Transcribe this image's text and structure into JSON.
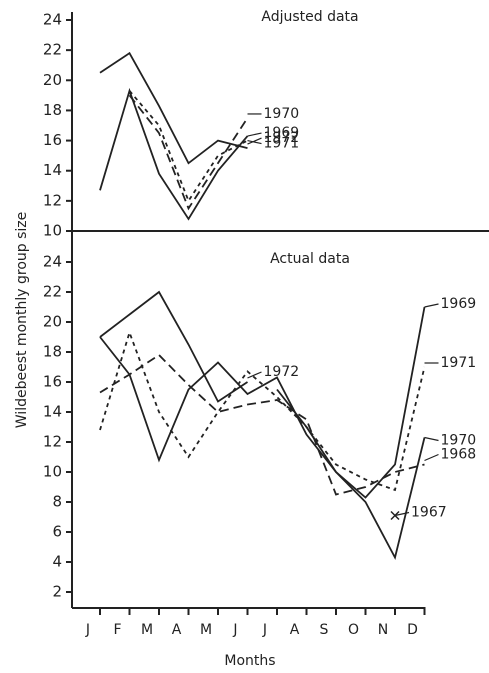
{
  "chart_data": [
    {
      "type": "line",
      "title": "Adjusted data",
      "categories": [
        "J",
        "F",
        "M",
        "A",
        "M",
        "J"
      ],
      "ylim": [
        10,
        24
      ],
      "yticks": [
        10,
        12,
        14,
        16,
        18,
        20,
        22,
        24
      ],
      "series": [
        {
          "name": "1972",
          "color": "#222222",
          "dash": "solid",
          "values": [
            20.5,
            21.8,
            18.3,
            14.5,
            16,
            15.5
          ]
        },
        {
          "name": "1969",
          "color": "#222222",
          "dash": "solid",
          "values": [
            12.7,
            19.3,
            13.8,
            10.8,
            14,
            16.3
          ]
        },
        {
          "name": "1970",
          "color": "#222222",
          "dash": "dashed",
          "values": [
            null,
            19,
            16.5,
            11.5,
            14.5,
            17.5
          ]
        },
        {
          "name": "1971",
          "color": "#222222",
          "dash": "dotted",
          "values": [
            null,
            19.3,
            17,
            12,
            15,
            16
          ]
        }
      ]
    },
    {
      "type": "line",
      "title": "Actual data",
      "xlabel": "Months",
      "ylabel": "Wildebeest monthly group size",
      "categories": [
        "J",
        "F",
        "M",
        "A",
        "M",
        "J",
        "J",
        "A",
        "S",
        "O",
        "N",
        "D"
      ],
      "ylim": [
        1,
        24
      ],
      "yticks": [
        2,
        4,
        6,
        8,
        10,
        12,
        14,
        16,
        18,
        20,
        22,
        24
      ],
      "series": [
        {
          "name": "1972",
          "color": "#222222",
          "dash": "solid",
          "values": [
            19,
            20.5,
            22,
            18.5,
            14.7,
            16,
            null,
            null,
            null,
            null,
            null,
            null
          ]
        },
        {
          "name": "1969",
          "color": "#222222",
          "dash": "solid",
          "values": [
            19,
            16.5,
            10.8,
            15.5,
            17.3,
            15.2,
            16.3,
            12.5,
            10,
            8.3,
            10.5,
            21
          ]
        },
        {
          "name": "1971",
          "color": "#222222",
          "dash": "dotted",
          "values": [
            12.8,
            19.3,
            14,
            11,
            14,
            16.7,
            15,
            13,
            10.5,
            9.5,
            8.8,
            17
          ]
        },
        {
          "name": "1970",
          "color": "#222222",
          "dash": "solid",
          "values": [
            null,
            null,
            null,
            null,
            null,
            null,
            15.5,
            13,
            10,
            8,
            4.3,
            12.3
          ]
        },
        {
          "name": "1968",
          "color": "#222222",
          "dash": "dashed",
          "values": [
            15.3,
            16.5,
            17.8,
            15.8,
            14,
            14.5,
            14.8,
            13.5,
            8.5,
            9,
            10,
            10.5
          ]
        },
        {
          "name": "1967",
          "color": "#222222",
          "dash": "solid",
          "values": [
            null,
            null,
            null,
            null,
            null,
            null,
            null,
            null,
            null,
            null,
            7.1,
            null
          ]
        }
      ]
    }
  ]
}
